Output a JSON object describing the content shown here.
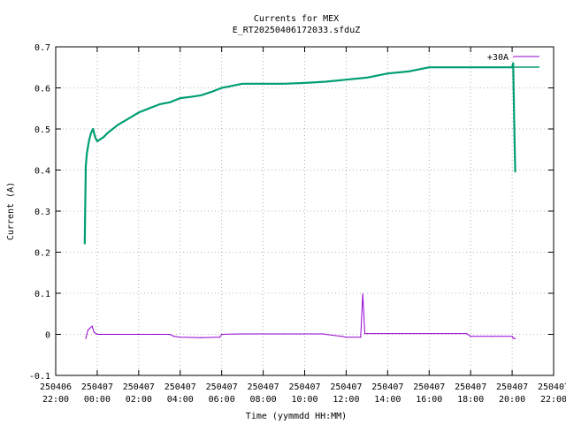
{
  "chart_data": {
    "type": "line",
    "title": "Currents for MEX",
    "subtitle": "E_RT20250406172033.sfduZ",
    "xlabel": "Time (yymmdd HH:MM)",
    "ylabel": "Current (A)",
    "ylim": [
      -0.1,
      0.7
    ],
    "xlim_hours": [
      -2,
      22
    ],
    "y_ticks": [
      -0.1,
      0,
      0.1,
      0.2,
      0.3,
      0.4,
      0.5,
      0.6,
      0.7
    ],
    "y_tick_labels": [
      "-0.1",
      "0",
      "0.1",
      "0.2",
      "0.3",
      "0.4",
      "0.5",
      "0.6",
      "0.7"
    ],
    "x_ticks": [
      {
        "date": "250406",
        "time": "22:00"
      },
      {
        "date": "250407",
        "time": "00:00"
      },
      {
        "date": "250407",
        "time": "02:00"
      },
      {
        "date": "250407",
        "time": "04:00"
      },
      {
        "date": "250407",
        "time": "06:00"
      },
      {
        "date": "250407",
        "time": "08:00"
      },
      {
        "date": "250407",
        "time": "10:00"
      },
      {
        "date": "250407",
        "time": "12:00"
      },
      {
        "date": "250407",
        "time": "14:00"
      },
      {
        "date": "250407",
        "time": "16:00"
      },
      {
        "date": "250407",
        "time": "18:00"
      },
      {
        "date": "250407",
        "time": "20:00"
      },
      {
        "date": "250407",
        "time": "22:00"
      }
    ],
    "grid": true,
    "legend_position": "top-right",
    "series": [
      {
        "name": "+30A",
        "color": "#9400d3",
        "x": [
          -0.55,
          -0.45,
          -0.35,
          -0.25,
          -0.15,
          0.0,
          0.3,
          0.6,
          1.0,
          2.0,
          3.0,
          3.5,
          3.7,
          4.0,
          5.0,
          5.9,
          6.0,
          7.0,
          8.0,
          9.0,
          10.0,
          10.9,
          11.0,
          11.8,
          12.0,
          12.7,
          12.8,
          12.9,
          14.0,
          16.0,
          17.8,
          18.0,
          19.0,
          20.0,
          20.05,
          20.15
        ],
        "y": [
          -0.01,
          0.01,
          0.015,
          0.02,
          0.005,
          0.0,
          0.0,
          0.0,
          0.0,
          0.0,
          0.0,
          0.0,
          -0.005,
          -0.007,
          -0.008,
          -0.007,
          0.0,
          0.001,
          0.001,
          0.001,
          0.001,
          0.001,
          0.0,
          -0.005,
          -0.007,
          -0.007,
          0.098,
          0.002,
          0.002,
          0.002,
          0.002,
          -0.005,
          -0.005,
          -0.005,
          -0.01,
          -0.01
        ]
      },
      {
        "name": "",
        "color": "#009e73",
        "x": [
          -0.6,
          -0.55,
          -0.5,
          -0.4,
          -0.3,
          -0.2,
          -0.1,
          0.0,
          0.3,
          0.5,
          1.0,
          1.5,
          2.0,
          2.5,
          3.0,
          3.5,
          4.0,
          4.5,
          5.0,
          5.5,
          6.0,
          6.5,
          7.0,
          8.0,
          9.0,
          10.0,
          11.0,
          12.0,
          13.0,
          14.0,
          15.0,
          16.0,
          17.0,
          18.0,
          19.0,
          20.0,
          20.05,
          20.1,
          20.15
        ],
        "y": [
          0.22,
          0.41,
          0.44,
          0.47,
          0.49,
          0.5,
          0.48,
          0.47,
          0.48,
          0.49,
          0.51,
          0.525,
          0.54,
          0.55,
          0.56,
          0.565,
          0.575,
          0.578,
          0.582,
          0.59,
          0.6,
          0.605,
          0.61,
          0.61,
          0.61,
          0.612,
          0.615,
          0.62,
          0.625,
          0.635,
          0.64,
          0.65,
          0.65,
          0.65,
          0.65,
          0.65,
          0.66,
          0.52,
          0.395
        ]
      }
    ]
  }
}
